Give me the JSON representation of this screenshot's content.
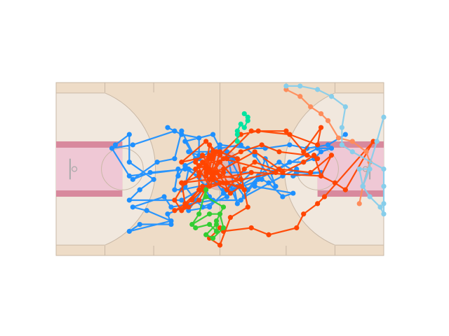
{
  "chart_data": {
    "type": "line",
    "title": "",
    "xlabel": "",
    "ylabel": "",
    "background": "basketball-court",
    "grid": false,
    "legend": false,
    "xlim": [
      0,
      94
    ],
    "ylim": [
      0,
      50
    ],
    "court": {
      "floor_color": "#eedcc7",
      "three_point_area_color": "#f1e8de",
      "paint_color": "#efc8d5",
      "paint_border_color": "#d8899d",
      "line_color": "#c9b8a6",
      "center_circle_color": "#d79aae"
    },
    "series": [
      {
        "color": "#1e90ff",
        "points": [
          [
            17,
            32
          ],
          [
            21,
            35
          ],
          [
            21,
            27
          ],
          [
            28,
            22
          ],
          [
            24,
            19
          ],
          [
            21,
            16
          ],
          [
            36,
            16
          ],
          [
            43,
            20
          ],
          [
            37,
            26
          ],
          [
            44,
            22
          ],
          [
            38,
            13
          ],
          [
            44,
            14
          ],
          [
            50,
            20
          ],
          [
            52,
            15
          ],
          [
            49,
            30
          ],
          [
            53,
            22
          ],
          [
            55,
            19
          ],
          [
            58,
            23
          ],
          [
            62,
            24
          ],
          [
            75,
            31
          ],
          [
            79,
            31
          ],
          [
            76,
            30
          ],
          [
            74,
            28
          ],
          [
            71,
            27
          ],
          [
            67,
            27
          ],
          [
            58,
            22
          ],
          [
            60,
            28
          ],
          [
            63,
            20
          ],
          [
            57,
            29
          ],
          [
            53,
            32
          ],
          [
            47,
            31
          ],
          [
            45,
            35
          ],
          [
            37,
            33
          ],
          [
            40,
            28
          ],
          [
            36,
            36
          ],
          [
            34,
            28
          ],
          [
            29,
            27
          ],
          [
            22,
            22
          ],
          [
            27,
            24
          ],
          [
            38,
            25
          ],
          [
            37,
            20
          ],
          [
            40,
            16
          ],
          [
            42,
            14
          ],
          [
            49,
            17
          ],
          [
            48,
            19
          ],
          [
            51,
            19
          ],
          [
            64,
            27
          ],
          [
            69,
            24
          ],
          [
            76,
            24
          ],
          [
            68,
            23
          ],
          [
            69,
            25
          ],
          [
            65,
            23
          ],
          [
            54,
            17
          ],
          [
            52,
            20
          ],
          [
            56,
            24
          ],
          [
            48,
            24
          ],
          [
            51,
            28
          ],
          [
            47,
            30
          ],
          [
            38,
            30
          ],
          [
            41,
            29
          ],
          [
            41,
            34
          ],
          [
            36,
            35
          ],
          [
            32,
            37
          ],
          [
            34,
            36
          ],
          [
            22,
            32
          ],
          [
            16,
            31
          ],
          [
            21,
            23
          ],
          [
            37,
            25
          ],
          [
            41,
            23
          ],
          [
            44,
            17
          ],
          [
            32,
            12
          ],
          [
            33,
            9
          ],
          [
            24,
            9
          ],
          [
            21,
            7
          ],
          [
            33,
            10
          ],
          [
            26,
            13
          ],
          [
            22,
            14
          ],
          [
            31,
            17
          ],
          [
            33,
            14
          ],
          [
            45,
            16
          ],
          [
            53,
            16
          ],
          [
            57,
            21
          ],
          [
            57,
            20
          ],
          [
            68,
            18
          ],
          [
            65,
            17
          ],
          [
            61,
            21
          ],
          [
            59,
            22
          ],
          [
            48,
            18
          ],
          [
            46,
            21
          ],
          [
            36,
            19
          ],
          [
            34,
            19
          ],
          [
            35,
            25
          ],
          [
            35,
            23
          ],
          [
            37,
            26
          ],
          [
            41,
            28
          ],
          [
            47,
            32
          ],
          [
            55,
            31
          ],
          [
            60,
            31
          ],
          [
            67,
            32
          ],
          [
            72,
            31
          ],
          [
            78,
            32
          ],
          [
            83,
            35
          ]
        ]
      },
      {
        "color": "#ff4500",
        "points": [
          [
            36,
            21
          ],
          [
            41,
            23
          ],
          [
            44,
            28
          ],
          [
            43,
            24
          ],
          [
            53,
            22
          ],
          [
            42,
            20
          ],
          [
            37,
            15
          ],
          [
            36,
            21
          ],
          [
            44,
            22
          ],
          [
            47,
            27
          ],
          [
            54,
            19
          ],
          [
            49,
            21
          ],
          [
            48,
            24
          ],
          [
            41,
            26
          ],
          [
            43,
            25
          ],
          [
            44,
            32
          ],
          [
            45,
            30
          ],
          [
            43,
            26
          ],
          [
            40,
            25
          ],
          [
            46,
            30
          ],
          [
            44,
            22
          ],
          [
            45,
            24
          ],
          [
            42,
            29
          ],
          [
            40,
            27
          ],
          [
            44,
            20
          ],
          [
            46,
            24
          ],
          [
            42,
            27
          ],
          [
            47,
            21
          ],
          [
            44,
            25
          ],
          [
            45,
            29
          ],
          [
            47,
            29
          ],
          [
            53,
            35
          ],
          [
            58,
            36
          ],
          [
            67,
            35
          ],
          [
            75,
            32
          ],
          [
            76,
            37
          ],
          [
            71,
            30
          ],
          [
            66,
            36
          ],
          [
            56,
            36
          ],
          [
            44,
            24
          ],
          [
            48,
            25
          ],
          [
            57,
            30
          ],
          [
            64,
            25
          ],
          [
            73,
            24
          ],
          [
            79,
            29
          ],
          [
            76,
            23
          ],
          [
            56,
            24
          ],
          [
            45,
            22
          ],
          [
            49,
            21
          ],
          [
            63,
            24
          ],
          [
            48,
            28
          ],
          [
            43,
            23
          ],
          [
            45,
            29
          ],
          [
            36,
            27
          ],
          [
            43,
            33
          ],
          [
            46,
            30
          ],
          [
            44,
            29
          ],
          [
            37,
            21
          ],
          [
            34,
            16
          ],
          [
            36,
            13
          ],
          [
            38,
            14
          ],
          [
            41,
            16
          ],
          [
            45,
            23
          ],
          [
            47,
            30
          ],
          [
            52,
            28
          ],
          [
            55,
            14
          ],
          [
            50,
            11
          ],
          [
            47,
            3
          ],
          [
            44,
            5
          ],
          [
            47,
            8
          ],
          [
            48,
            7
          ],
          [
            56,
            8
          ],
          [
            61,
            6
          ],
          [
            69,
            8
          ],
          [
            71,
            12
          ],
          [
            75,
            15
          ],
          [
            77,
            17
          ],
          [
            91,
            33
          ],
          [
            83,
            19
          ],
          [
            80,
            21
          ],
          [
            76,
            23
          ],
          [
            74,
            29
          ],
          [
            71,
            27
          ],
          [
            65,
            24
          ],
          [
            57,
            27
          ],
          [
            54,
            25
          ],
          [
            49,
            19
          ],
          [
            41,
            24
          ],
          [
            41,
            19
          ],
          [
            37,
            14
          ],
          [
            34,
            13
          ],
          [
            39,
            16
          ],
          [
            42,
            19
          ],
          [
            48,
            21
          ],
          [
            53,
            20
          ],
          [
            50,
            18
          ],
          [
            47,
            23
          ],
          [
            45,
            28
          ],
          [
            41,
            26
          ],
          [
            49,
            28
          ],
          [
            53,
            30
          ],
          [
            59,
            32
          ],
          [
            64,
            30
          ],
          [
            72,
            29
          ],
          [
            75,
            28
          ]
        ]
      },
      {
        "color": "#ff8c5a",
        "points": [
          [
            66,
            48
          ],
          [
            70,
            46
          ],
          [
            73,
            43
          ],
          [
            76,
            41
          ],
          [
            78,
            39
          ],
          [
            81,
            34
          ],
          [
            85,
            33
          ],
          [
            89,
            30
          ],
          [
            90,
            27
          ],
          [
            88,
            20
          ],
          [
            87,
            15
          ]
        ]
      },
      {
        "color": "#87ceeb",
        "points": [
          [
            66,
            49
          ],
          [
            70,
            49
          ],
          [
            75,
            48
          ],
          [
            79,
            46
          ],
          [
            83,
            43
          ],
          [
            82,
            37
          ],
          [
            82,
            32
          ],
          [
            85,
            30
          ],
          [
            94,
            25
          ],
          [
            94,
            20
          ],
          [
            94,
            15
          ],
          [
            94,
            12
          ],
          [
            93,
            14
          ],
          [
            90,
            17
          ],
          [
            88,
            20
          ],
          [
            87,
            25
          ],
          [
            90,
            25
          ],
          [
            88,
            20
          ],
          [
            92,
            33
          ],
          [
            94,
            40
          ]
        ]
      },
      {
        "color": "#32cd32",
        "points": [
          [
            40,
            8
          ],
          [
            44,
            9
          ],
          [
            46,
            7
          ],
          [
            46,
            10
          ],
          [
            48,
            14
          ],
          [
            43,
            17
          ],
          [
            43,
            19
          ],
          [
            41,
            12
          ],
          [
            39,
            9
          ],
          [
            44,
            12
          ],
          [
            47,
            12
          ],
          [
            48,
            8
          ],
          [
            45,
            5
          ],
          [
            43,
            6
          ],
          [
            46,
            9
          ]
        ]
      },
      {
        "color": "#00e5a0",
        "points": [
          [
            52,
            35
          ],
          [
            52,
            33
          ],
          [
            52,
            36
          ],
          [
            53,
            38
          ],
          [
            54,
            37
          ],
          [
            55,
            39
          ],
          [
            55,
            40
          ],
          [
            54,
            41
          ]
        ]
      }
    ]
  }
}
